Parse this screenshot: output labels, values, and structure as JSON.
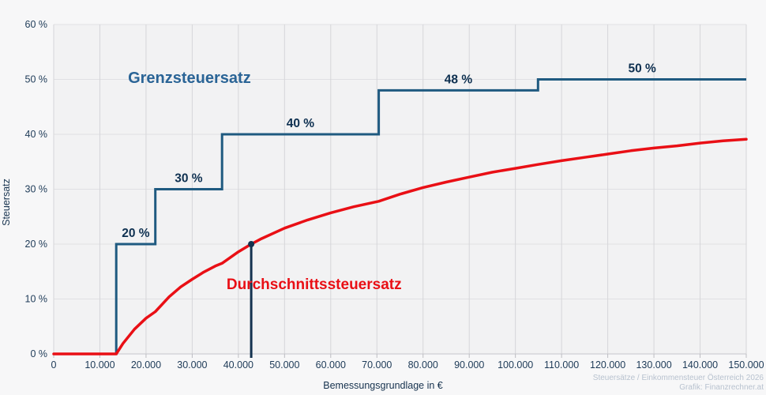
{
  "page": {
    "background": "#f7f7f8",
    "plot_background": "#f2f2f3"
  },
  "axis_titles": {
    "x": "Bemessungsgrundlage in €",
    "y": "Steuersatz"
  },
  "attribution": {
    "line1": "Steuersätze / Einkommensteuer Österreich 2026",
    "line2": "Grafik: Finanzrechner.at",
    "color": "#b8c2cf"
  },
  "chart_data": {
    "type": "line",
    "title": "",
    "xlabel": "Bemessungsgrundlage in €",
    "ylabel": "Steuersatz",
    "xlim": [
      0,
      150000
    ],
    "ylim": [
      0,
      60
    ],
    "grid": true,
    "x_ticks": [
      0,
      10000,
      20000,
      30000,
      40000,
      50000,
      60000,
      70000,
      80000,
      90000,
      100000,
      110000,
      120000,
      130000,
      140000,
      150000
    ],
    "x_tick_labels": [
      "0",
      "10.000",
      "20.000",
      "30.000",
      "40.000",
      "50.000",
      "60.000",
      "70.000",
      "80.000",
      "90.000",
      "100.000",
      "110.000",
      "120.000",
      "130.000",
      "140.000",
      "150.000"
    ],
    "y_ticks": [
      0,
      10,
      20,
      30,
      40,
      50,
      60
    ],
    "y_tick_labels": [
      "0 %",
      "10 %",
      "20 %",
      "30 %",
      "40 %",
      "50 %",
      "60 %"
    ],
    "colors": {
      "grid_h": "#e0e0e3",
      "grid_v": "#d6d6d9",
      "axis_line": "#c6c6cb",
      "tick_mark": "#bcbcc2",
      "tick_text": "#1d3a57"
    },
    "series": [
      {
        "name": "Grenzsteuersatz",
        "kind": "step",
        "color": "#1f5a80",
        "width": 3,
        "label_color": "#0e3050",
        "points": [
          [
            0,
            0
          ],
          [
            13541,
            0
          ],
          [
            13541,
            20
          ],
          [
            22005,
            20
          ],
          [
            22005,
            30
          ],
          [
            36467,
            30
          ],
          [
            36467,
            40
          ],
          [
            70392,
            40
          ],
          [
            70392,
            48
          ],
          [
            104903,
            48
          ],
          [
            104903,
            50
          ],
          [
            150000,
            50
          ]
        ],
        "segment_labels": [
          {
            "text": "20 %",
            "x": 17773,
            "y": 20
          },
          {
            "text": "30 %",
            "x": 29236,
            "y": 30
          },
          {
            "text": "40 %",
            "x": 53430,
            "y": 40
          },
          {
            "text": "48 %",
            "x": 87648,
            "y": 48
          },
          {
            "text": "50 %",
            "x": 127452,
            "y": 50
          }
        ]
      },
      {
        "name": "Durchschnittssteuersatz",
        "kind": "line",
        "color": "#e90f15",
        "width": 3.5,
        "points": [
          [
            0,
            0
          ],
          [
            13541,
            0
          ],
          [
            15000,
            1.9
          ],
          [
            17500,
            4.5
          ],
          [
            20000,
            6.5
          ],
          [
            22005,
            7.7
          ],
          [
            25000,
            10.4
          ],
          [
            27500,
            12.2
          ],
          [
            30000,
            13.6
          ],
          [
            32500,
            14.9
          ],
          [
            35000,
            16.0
          ],
          [
            36467,
            16.5
          ],
          [
            40000,
            18.6
          ],
          [
            42777,
            20.0
          ],
          [
            45000,
            21.0
          ],
          [
            50000,
            22.9
          ],
          [
            55000,
            24.4
          ],
          [
            60000,
            25.7
          ],
          [
            65000,
            26.8
          ],
          [
            70392,
            27.8
          ],
          [
            75000,
            29.1
          ],
          [
            80000,
            30.3
          ],
          [
            85000,
            31.3
          ],
          [
            90000,
            32.2
          ],
          [
            95000,
            33.1
          ],
          [
            100000,
            33.8
          ],
          [
            104903,
            34.5
          ],
          [
            110000,
            35.2
          ],
          [
            115000,
            35.8
          ],
          [
            120000,
            36.4
          ],
          [
            125000,
            37.0
          ],
          [
            130000,
            37.5
          ],
          [
            135000,
            37.9
          ],
          [
            140000,
            38.4
          ],
          [
            145000,
            38.8
          ],
          [
            150000,
            39.1
          ]
        ]
      }
    ],
    "annotations": [
      {
        "text": "Grenzsteuersatz",
        "x": 29400,
        "y": 50.2,
        "color": "#2a6496",
        "size": 20
      },
      {
        "text": "Durchschnittssteuersatz",
        "x": 56400,
        "y": 12.6,
        "color": "#e90f15",
        "size": 19
      }
    ],
    "marker": {
      "x": 42777,
      "y": 20,
      "color": "#14324f"
    }
  }
}
